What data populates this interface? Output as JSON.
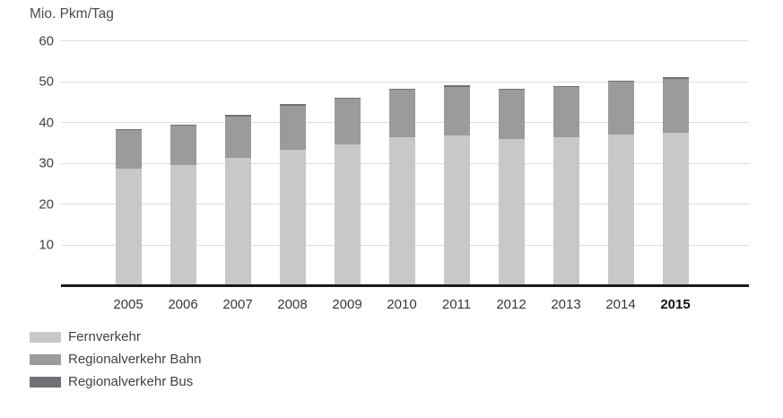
{
  "chart_data": {
    "type": "bar",
    "stacked": true,
    "title": "Mio. Pkm/Tag",
    "categories": [
      "2005",
      "2006",
      "2007",
      "2008",
      "2009",
      "2010",
      "2011",
      "2012",
      "2013",
      "2014",
      "2015"
    ],
    "bold_category": "2015",
    "series": [
      {
        "name": "Fernverkehr",
        "color": "#c7c8c9",
        "values": [
          28.3,
          29.2,
          31.0,
          33.0,
          34.2,
          36.0,
          36.4,
          35.6,
          36.0,
          36.8,
          37.2
        ]
      },
      {
        "name": "Regionalverkehr Bahn",
        "color": "#9a9b9d",
        "values": [
          9.4,
          9.7,
          10.2,
          10.8,
          11.2,
          11.6,
          12.0,
          12.1,
          12.3,
          12.8,
          13.2
        ]
      },
      {
        "name": "Regionalverkehr Bus",
        "color": "#707174",
        "values": [
          0.3,
          0.3,
          0.3,
          0.3,
          0.3,
          0.3,
          0.3,
          0.3,
          0.3,
          0.3,
          0.3
        ]
      }
    ],
    "totals": [
      38.0,
      39.2,
      41.5,
      44.1,
      45.7,
      47.9,
      48.7,
      48.0,
      48.6,
      49.9,
      50.7
    ],
    "y_axis": {
      "min": 0,
      "max": 60,
      "tick_step": 10,
      "ticks": [
        10,
        20,
        30,
        40,
        50,
        60
      ]
    },
    "xlabel": "",
    "ylabel": "Mio. Pkm/Tag",
    "grid": true,
    "legend_position": "bottom-left",
    "colors": {
      "axis_line": "#1a1a18",
      "gridline": "#dcdcdc",
      "text": "#424242"
    }
  }
}
